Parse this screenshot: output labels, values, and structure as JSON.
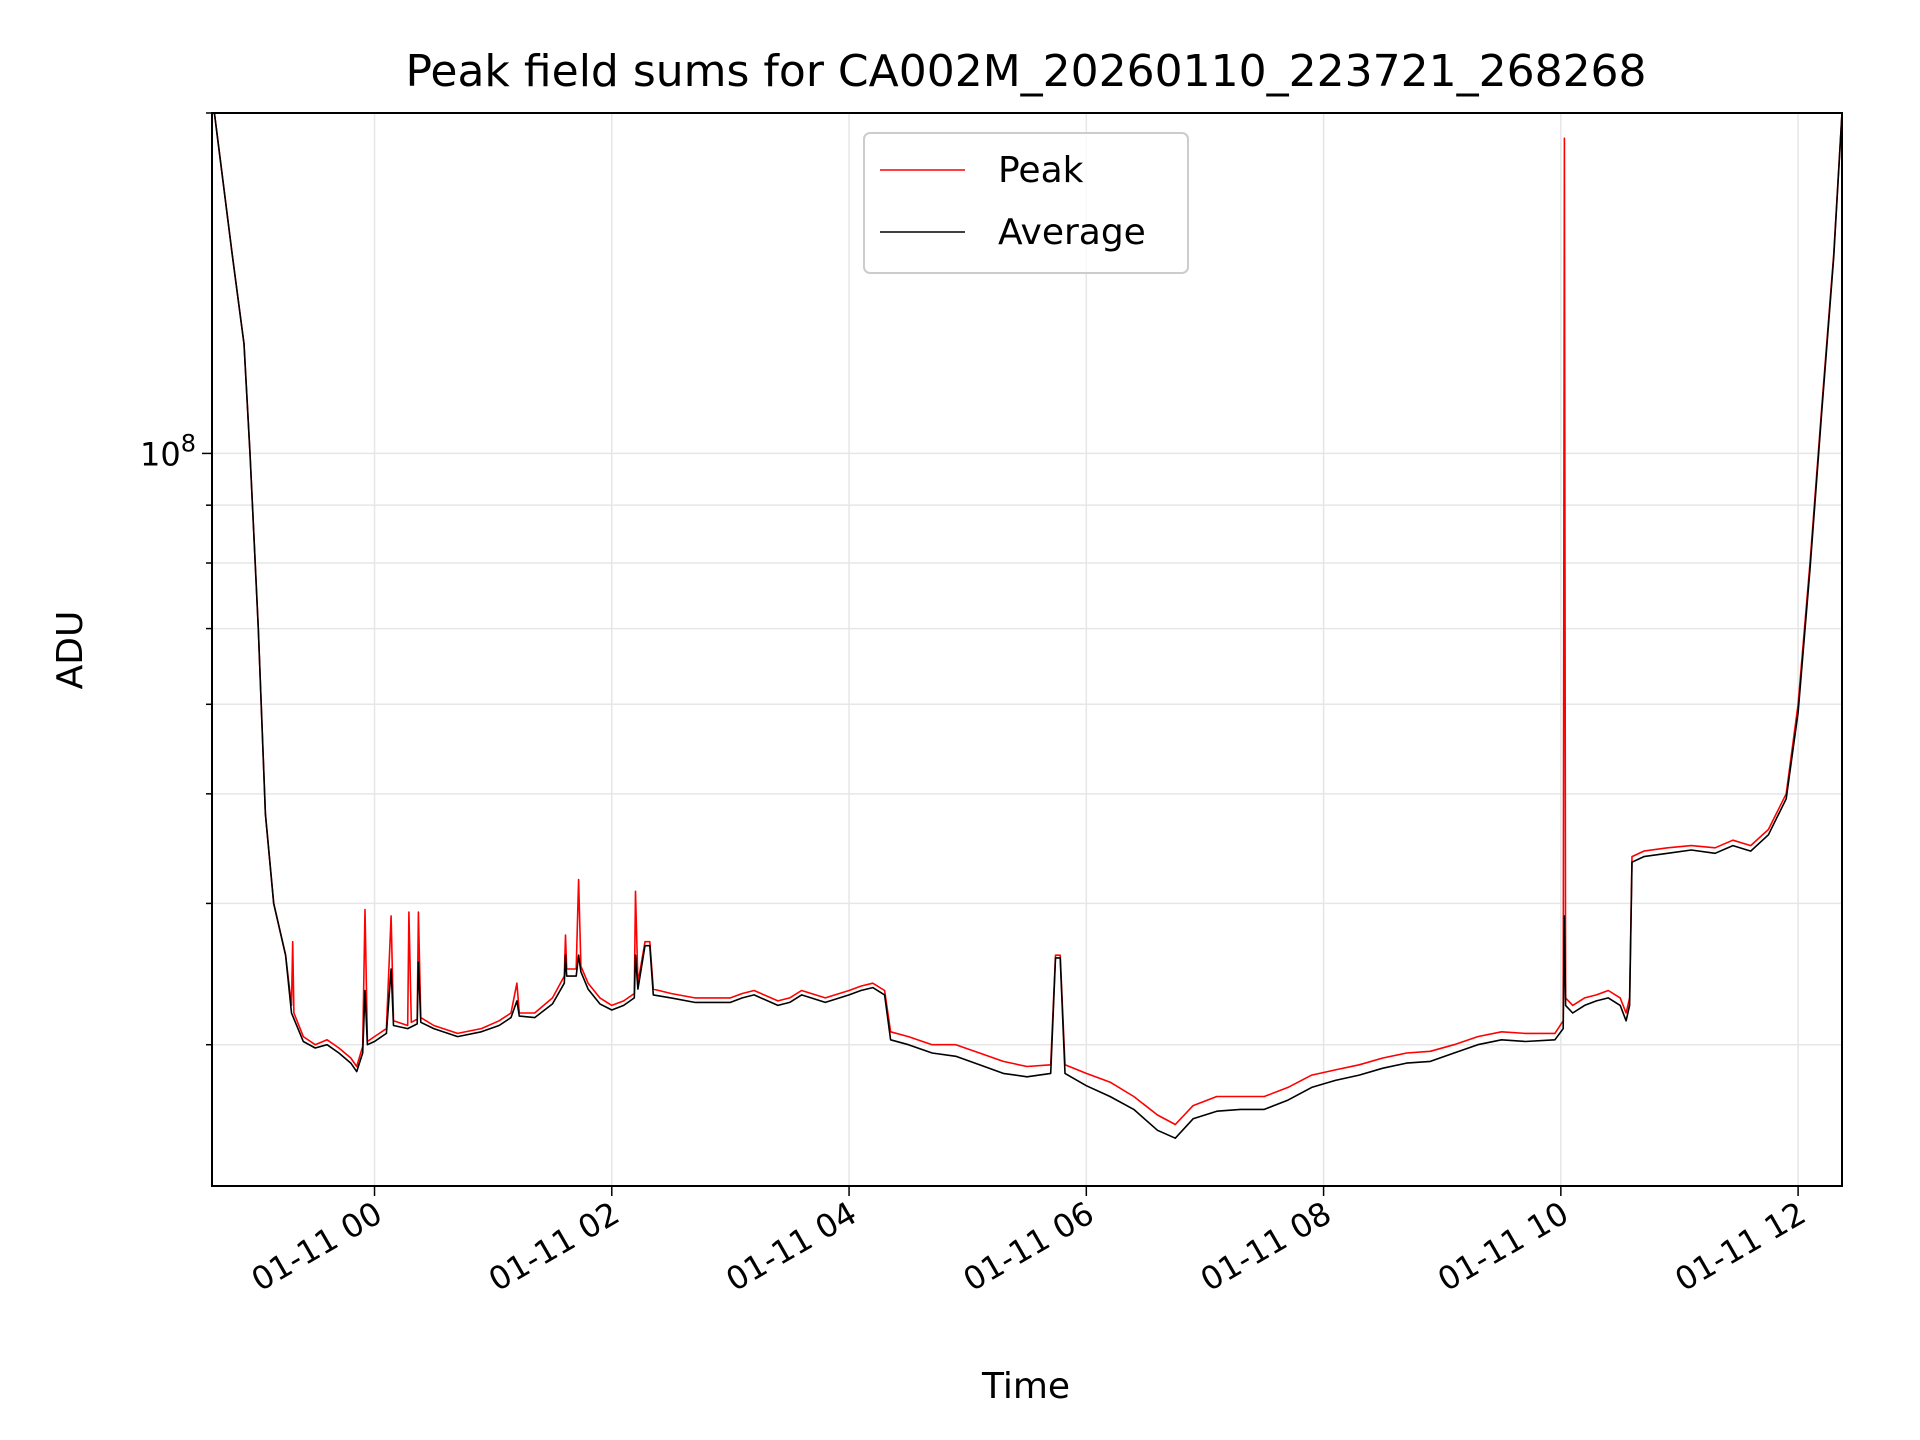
{
  "chart_data": {
    "type": "line",
    "title": "Peak field sums for CA002M_20260110_223721_268268",
    "xlabel": "Time",
    "ylabel": "ADU",
    "yscale": "log",
    "ylim": [
      22500000,
      200000000
    ],
    "xlim_hours": [
      -1.37,
      12.37
    ],
    "x_ticks": [
      {
        "label": "01-11 00",
        "hour": 0
      },
      {
        "label": "01-11 02",
        "hour": 2
      },
      {
        "label": "01-11 04",
        "hour": 4
      },
      {
        "label": "01-11 06",
        "hour": 6
      },
      {
        "label": "01-11 08",
        "hour": 8
      },
      {
        "label": "01-11 10",
        "hour": 10
      },
      {
        "label": "01-11 12",
        "hour": 12
      }
    ],
    "y_ticks": [
      {
        "base": "10",
        "exp": "8",
        "value": 100000000
      }
    ],
    "grid": true,
    "legend": {
      "position": "top-center",
      "entries": [
        "Peak",
        "Average"
      ]
    },
    "series": [
      {
        "name": "Peak",
        "color": "#ff0000",
        "points": [
          [
            -1.35,
            200000000
          ],
          [
            -1.2,
            150000000
          ],
          [
            -1.1,
            125000000
          ],
          [
            -1.05,
            100000000
          ],
          [
            -0.98,
            70000000
          ],
          [
            -0.92,
            48000000
          ],
          [
            -0.85,
            40000000
          ],
          [
            -0.75,
            36000000
          ],
          [
            -0.7,
            32500000
          ],
          [
            -0.69,
            37000000
          ],
          [
            -0.68,
            32000000
          ],
          [
            -0.6,
            30500000
          ],
          [
            -0.5,
            30000000
          ],
          [
            -0.4,
            30300000
          ],
          [
            -0.3,
            29800000
          ],
          [
            -0.2,
            29200000
          ],
          [
            -0.15,
            28700000
          ],
          [
            -0.1,
            29900000
          ],
          [
            -0.08,
            39500000
          ],
          [
            -0.06,
            30200000
          ],
          [
            0.0,
            30500000
          ],
          [
            0.1,
            31000000
          ],
          [
            0.14,
            39000000
          ],
          [
            0.16,
            31500000
          ],
          [
            0.28,
            31200000
          ],
          [
            0.29,
            39300000
          ],
          [
            0.31,
            31400000
          ],
          [
            0.36,
            31600000
          ],
          [
            0.37,
            39300000
          ],
          [
            0.39,
            31700000
          ],
          [
            0.5,
            31200000
          ],
          [
            0.7,
            30700000
          ],
          [
            0.9,
            31000000
          ],
          [
            1.05,
            31500000
          ],
          [
            1.15,
            32000000
          ],
          [
            1.2,
            34000000
          ],
          [
            1.22,
            32000000
          ],
          [
            1.35,
            32000000
          ],
          [
            1.5,
            33000000
          ],
          [
            1.6,
            34500000
          ],
          [
            1.61,
            37500000
          ],
          [
            1.62,
            35000000
          ],
          [
            1.7,
            35000000
          ],
          [
            1.72,
            42000000
          ],
          [
            1.74,
            35200000
          ],
          [
            1.8,
            34000000
          ],
          [
            1.9,
            33000000
          ],
          [
            2.0,
            32500000
          ],
          [
            2.1,
            32800000
          ],
          [
            2.19,
            33300000
          ],
          [
            2.2,
            41000000
          ],
          [
            2.22,
            34000000
          ],
          [
            2.28,
            37000000
          ],
          [
            2.32,
            37000000
          ],
          [
            2.35,
            33600000
          ],
          [
            2.5,
            33300000
          ],
          [
            2.7,
            33000000
          ],
          [
            2.9,
            33000000
          ],
          [
            3.0,
            33000000
          ],
          [
            3.1,
            33300000
          ],
          [
            3.2,
            33500000
          ],
          [
            3.4,
            32800000
          ],
          [
            3.5,
            33000000
          ],
          [
            3.6,
            33500000
          ],
          [
            3.8,
            33000000
          ],
          [
            4.0,
            33500000
          ],
          [
            4.1,
            33800000
          ],
          [
            4.2,
            34000000
          ],
          [
            4.3,
            33500000
          ],
          [
            4.35,
            30800000
          ],
          [
            4.5,
            30500000
          ],
          [
            4.7,
            30000000
          ],
          [
            4.9,
            30000000
          ],
          [
            5.1,
            29500000
          ],
          [
            5.3,
            29000000
          ],
          [
            5.5,
            28700000
          ],
          [
            5.7,
            28800000
          ],
          [
            5.74,
            36000000
          ],
          [
            5.78,
            36000000
          ],
          [
            5.82,
            28800000
          ],
          [
            6.0,
            28300000
          ],
          [
            6.2,
            27800000
          ],
          [
            6.4,
            27000000
          ],
          [
            6.6,
            26000000
          ],
          [
            6.75,
            25500000
          ],
          [
            6.9,
            26500000
          ],
          [
            7.1,
            27000000
          ],
          [
            7.3,
            27000000
          ],
          [
            7.5,
            27000000
          ],
          [
            7.7,
            27500000
          ],
          [
            7.9,
            28200000
          ],
          [
            8.1,
            28500000
          ],
          [
            8.3,
            28800000
          ],
          [
            8.5,
            29200000
          ],
          [
            8.7,
            29500000
          ],
          [
            8.9,
            29600000
          ],
          [
            9.1,
            30000000
          ],
          [
            9.3,
            30500000
          ],
          [
            9.5,
            30800000
          ],
          [
            9.7,
            30700000
          ],
          [
            9.95,
            30700000
          ],
          [
            10.02,
            31500000
          ],
          [
            10.03,
            190000000
          ],
          [
            10.04,
            33000000
          ],
          [
            10.1,
            32500000
          ],
          [
            10.2,
            33000000
          ],
          [
            10.3,
            33200000
          ],
          [
            10.4,
            33500000
          ],
          [
            10.5,
            33000000
          ],
          [
            10.55,
            32000000
          ],
          [
            10.58,
            33000000
          ],
          [
            10.6,
            44000000
          ],
          [
            10.7,
            44500000
          ],
          [
            10.9,
            44800000
          ],
          [
            11.1,
            45000000
          ],
          [
            11.3,
            44800000
          ],
          [
            11.45,
            45500000
          ],
          [
            11.6,
            45000000
          ],
          [
            11.75,
            46500000
          ],
          [
            11.9,
            50000000
          ],
          [
            12.0,
            60000000
          ],
          [
            12.1,
            80000000
          ],
          [
            12.2,
            110000000
          ],
          [
            12.3,
            150000000
          ],
          [
            12.37,
            200000000
          ]
        ]
      },
      {
        "name": "Average",
        "color": "#000000",
        "points": [
          [
            -1.35,
            200000000
          ],
          [
            -1.2,
            150000000
          ],
          [
            -1.1,
            125000000
          ],
          [
            -1.05,
            100000000
          ],
          [
            -0.98,
            70000000
          ],
          [
            -0.92,
            48000000
          ],
          [
            -0.85,
            40000000
          ],
          [
            -0.75,
            36000000
          ],
          [
            -0.7,
            32000000
          ],
          [
            -0.6,
            30200000
          ],
          [
            -0.5,
            29800000
          ],
          [
            -0.4,
            30000000
          ],
          [
            -0.3,
            29500000
          ],
          [
            -0.2,
            28900000
          ],
          [
            -0.15,
            28400000
          ],
          [
            -0.1,
            29500000
          ],
          [
            -0.08,
            33500000
          ],
          [
            -0.06,
            30000000
          ],
          [
            0.0,
            30200000
          ],
          [
            0.1,
            30700000
          ],
          [
            0.14,
            35000000
          ],
          [
            0.16,
            31200000
          ],
          [
            0.28,
            31000000
          ],
          [
            0.36,
            31300000
          ],
          [
            0.37,
            35500000
          ],
          [
            0.39,
            31400000
          ],
          [
            0.5,
            31000000
          ],
          [
            0.7,
            30500000
          ],
          [
            0.9,
            30800000
          ],
          [
            1.05,
            31200000
          ],
          [
            1.15,
            31700000
          ],
          [
            1.2,
            32800000
          ],
          [
            1.22,
            31800000
          ],
          [
            1.35,
            31700000
          ],
          [
            1.5,
            32600000
          ],
          [
            1.6,
            34000000
          ],
          [
            1.61,
            36000000
          ],
          [
            1.62,
            34500000
          ],
          [
            1.7,
            34500000
          ],
          [
            1.72,
            36000000
          ],
          [
            1.74,
            34800000
          ],
          [
            1.8,
            33600000
          ],
          [
            1.9,
            32600000
          ],
          [
            2.0,
            32200000
          ],
          [
            2.1,
            32500000
          ],
          [
            2.19,
            33000000
          ],
          [
            2.2,
            36000000
          ],
          [
            2.22,
            33600000
          ],
          [
            2.28,
            36700000
          ],
          [
            2.32,
            36700000
          ],
          [
            2.35,
            33200000
          ],
          [
            2.5,
            33000000
          ],
          [
            2.7,
            32700000
          ],
          [
            2.9,
            32700000
          ],
          [
            3.0,
            32700000
          ],
          [
            3.1,
            33000000
          ],
          [
            3.2,
            33200000
          ],
          [
            3.4,
            32500000
          ],
          [
            3.5,
            32700000
          ],
          [
            3.6,
            33200000
          ],
          [
            3.8,
            32700000
          ],
          [
            4.0,
            33200000
          ],
          [
            4.1,
            33500000
          ],
          [
            4.2,
            33700000
          ],
          [
            4.3,
            33200000
          ],
          [
            4.35,
            30300000
          ],
          [
            4.5,
            30000000
          ],
          [
            4.7,
            29500000
          ],
          [
            4.9,
            29300000
          ],
          [
            5.1,
            28800000
          ],
          [
            5.3,
            28300000
          ],
          [
            5.5,
            28100000
          ],
          [
            5.7,
            28300000
          ],
          [
            5.74,
            35800000
          ],
          [
            5.78,
            35800000
          ],
          [
            5.82,
            28300000
          ],
          [
            6.0,
            27600000
          ],
          [
            6.2,
            27000000
          ],
          [
            6.4,
            26300000
          ],
          [
            6.6,
            25200000
          ],
          [
            6.75,
            24800000
          ],
          [
            6.9,
            25800000
          ],
          [
            7.1,
            26200000
          ],
          [
            7.3,
            26300000
          ],
          [
            7.5,
            26300000
          ],
          [
            7.7,
            26800000
          ],
          [
            7.9,
            27500000
          ],
          [
            8.1,
            27900000
          ],
          [
            8.3,
            28200000
          ],
          [
            8.5,
            28600000
          ],
          [
            8.7,
            28900000
          ],
          [
            8.9,
            29000000
          ],
          [
            9.1,
            29500000
          ],
          [
            9.3,
            30000000
          ],
          [
            9.5,
            30300000
          ],
          [
            9.7,
            30200000
          ],
          [
            9.95,
            30300000
          ],
          [
            10.02,
            31000000
          ],
          [
            10.03,
            39000000
          ],
          [
            10.04,
            32500000
          ],
          [
            10.1,
            32000000
          ],
          [
            10.2,
            32500000
          ],
          [
            10.3,
            32800000
          ],
          [
            10.4,
            33000000
          ],
          [
            10.5,
            32500000
          ],
          [
            10.55,
            31500000
          ],
          [
            10.58,
            32500000
          ],
          [
            10.6,
            43500000
          ],
          [
            10.7,
            44000000
          ],
          [
            10.9,
            44300000
          ],
          [
            11.1,
            44600000
          ],
          [
            11.3,
            44300000
          ],
          [
            11.45,
            45000000
          ],
          [
            11.6,
            44500000
          ],
          [
            11.75,
            46000000
          ],
          [
            11.9,
            49500000
          ],
          [
            12.0,
            59000000
          ],
          [
            12.1,
            79000000
          ],
          [
            12.2,
            109000000
          ],
          [
            12.3,
            149000000
          ],
          [
            12.37,
            200000000
          ]
        ]
      }
    ]
  }
}
